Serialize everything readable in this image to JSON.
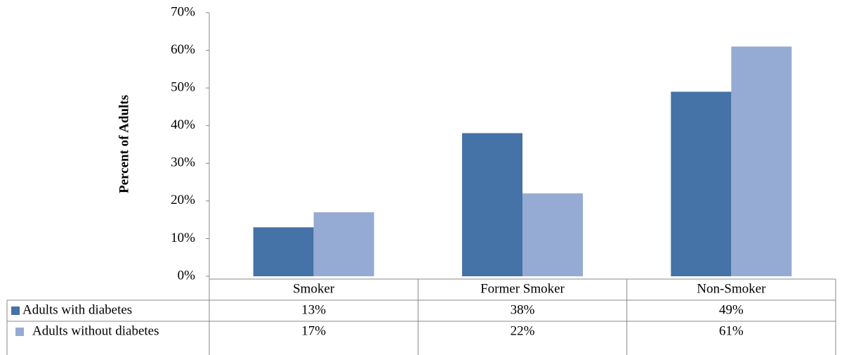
{
  "chart_data": {
    "type": "bar",
    "y_label": "Percent of Adults",
    "categories": [
      "Smoker",
      "Former Smoker",
      "Non-Smoker"
    ],
    "series": [
      {
        "name": "Adults with diabetes",
        "color": "#4572a7",
        "values": [
          13,
          38,
          49
        ],
        "value_labels": [
          "13%",
          "38%",
          "49%"
        ]
      },
      {
        "name": "Adults without diabetes",
        "color": "#95abd3",
        "values": [
          17,
          22,
          61
        ],
        "value_labels": [
          "17%",
          "22%",
          "61%"
        ]
      }
    ],
    "ylim": [
      0,
      70
    ],
    "yticks": [
      {
        "value": 0,
        "label": "0%"
      },
      {
        "value": 10,
        "label": "10%"
      },
      {
        "value": 20,
        "label": "20%"
      },
      {
        "value": 30,
        "label": "30%"
      },
      {
        "value": 40,
        "label": "40%"
      },
      {
        "value": 50,
        "label": "50%"
      },
      {
        "value": 60,
        "label": "60%"
      },
      {
        "value": 70,
        "label": "70%"
      }
    ],
    "grid": false,
    "legend": "table"
  }
}
